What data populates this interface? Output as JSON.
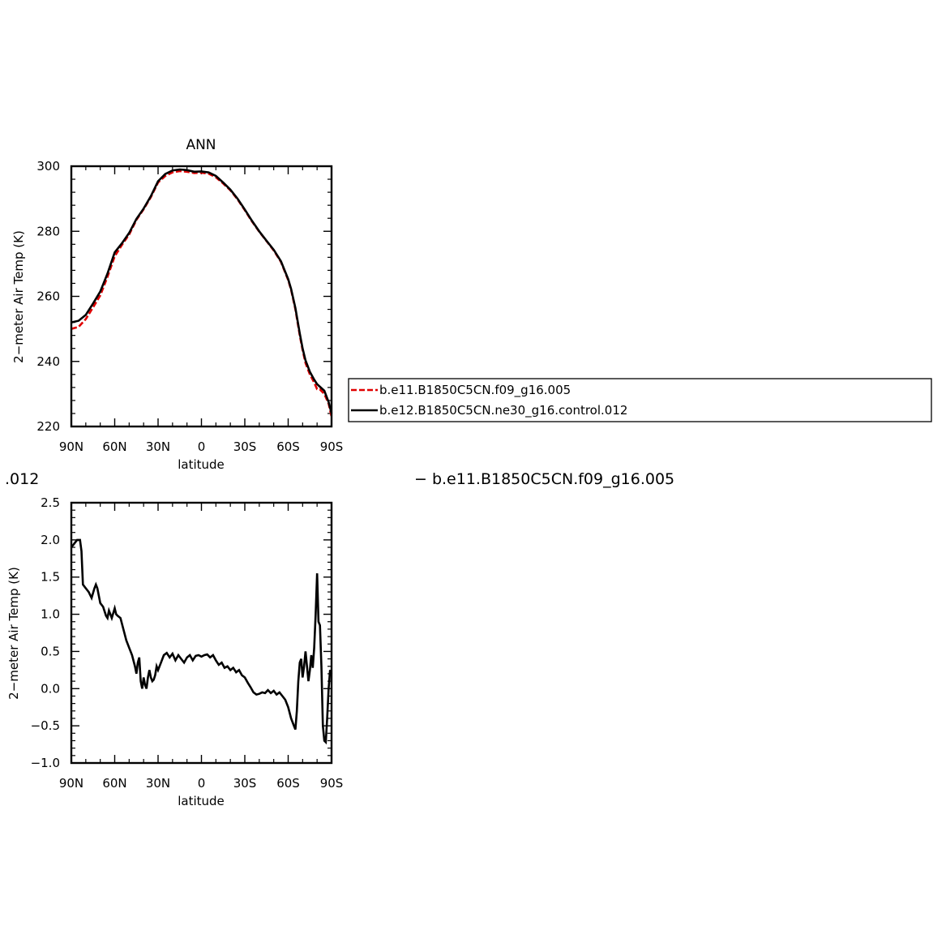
{
  "chart_data": [
    {
      "type": "line",
      "title": "ANN",
      "xlabel": "latitude",
      "ylabel": "2−meter Air Temp (K)",
      "xlim": [
        90,
        -90
      ],
      "ylim": [
        220,
        300
      ],
      "x_ticks": [
        90,
        60,
        30,
        0,
        -30,
        -60,
        -90
      ],
      "x_tick_labels": [
        "90N",
        "60N",
        "30N",
        "0",
        "30S",
        "60S",
        "90S"
      ],
      "y_ticks": [
        220,
        240,
        260,
        280,
        300
      ],
      "y_tick_labels": [
        "220",
        "240",
        "260",
        "280",
        "300"
      ],
      "legend_position": "right, outside plot",
      "series": [
        {
          "name": "b.e11.B1850C5CN.f09_g16.005",
          "color": "#e00000",
          "dash": "dashed",
          "x": [
            90,
            85,
            80,
            75,
            70,
            65,
            60,
            55,
            50,
            45,
            40,
            35,
            30,
            25,
            20,
            15,
            10,
            5,
            0,
            -5,
            -10,
            -15,
            -20,
            -25,
            -30,
            -35,
            -40,
            -45,
            -50,
            -55,
            -60,
            -62,
            -65,
            -68,
            -70,
            -72,
            -75,
            -78,
            -80,
            -82,
            -85,
            -88,
            -90
          ],
          "values": [
            250.0,
            250.6,
            253.0,
            256.6,
            260.3,
            266.0,
            272.3,
            275.8,
            279.0,
            283.5,
            286.8,
            290.5,
            295.0,
            297.0,
            298.1,
            298.5,
            298.3,
            297.9,
            298.0,
            297.7,
            296.6,
            294.7,
            292.6,
            289.8,
            286.5,
            283.0,
            279.9,
            277.0,
            274.1,
            270.6,
            265.0,
            262.0,
            256.0,
            248.0,
            243.5,
            239.5,
            236.0,
            233.5,
            231.5,
            231.4,
            230.0,
            227.0,
            223.0
          ]
        },
        {
          "name": "b.e12.B1850C5CN.ne30_g16.control.012",
          "color": "#000000",
          "dash": "solid",
          "x": [
            90,
            85,
            80,
            75,
            70,
            65,
            60,
            55,
            50,
            45,
            40,
            35,
            30,
            25,
            20,
            15,
            10,
            5,
            0,
            -5,
            -10,
            -15,
            -20,
            -25,
            -30,
            -35,
            -40,
            -45,
            -50,
            -55,
            -60,
            -62,
            -65,
            -68,
            -70,
            -72,
            -75,
            -78,
            -80,
            -82,
            -85,
            -88,
            -90
          ],
          "values": [
            252.0,
            252.5,
            254.3,
            257.8,
            261.5,
            267.0,
            273.5,
            276.3,
            279.5,
            283.8,
            287.0,
            290.8,
            295.4,
            297.6,
            298.7,
            299.0,
            298.8,
            298.3,
            298.4,
            298.1,
            297.0,
            295.0,
            292.8,
            290.0,
            286.7,
            283.2,
            280.0,
            277.1,
            274.3,
            270.8,
            265.3,
            262.3,
            256.4,
            248.6,
            244.0,
            240.3,
            236.8,
            234.4,
            233.0,
            232.2,
            231.0,
            227.5,
            224.0
          ]
        }
      ]
    },
    {
      "type": "line",
      "title": "",
      "xlabel": "latitude",
      "ylabel": "2−meter Air Temp (K)",
      "xlim": [
        90,
        -90
      ],
      "ylim": [
        -1.0,
        2.5
      ],
      "x_ticks": [
        90,
        60,
        30,
        0,
        -30,
        -60,
        -90
      ],
      "x_tick_labels": [
        "90N",
        "60N",
        "30N",
        "0",
        "30S",
        "60S",
        "90S"
      ],
      "y_ticks": [
        -1.0,
        -0.5,
        0.0,
        0.5,
        1.0,
        1.5,
        2.0,
        2.5
      ],
      "y_tick_labels": [
        "−1.0",
        "−0.5",
        "0.0",
        "0.5",
        "1.0",
        "1.5",
        "2.0",
        "2.5"
      ],
      "header_left": ".012",
      "header_right": "− b.e11.B1850C5CN.f09_g16.005",
      "series": [
        {
          "color": "#000000",
          "x": [
            90,
            88,
            86,
            84,
            83,
            82,
            80,
            78,
            76,
            74,
            73,
            72,
            70,
            68,
            66,
            65,
            64,
            63,
            62,
            60,
            59,
            58,
            56,
            54,
            52,
            50,
            48,
            46,
            45,
            44,
            43,
            42,
            41,
            40,
            39,
            38,
            37,
            36,
            35,
            34,
            33,
            32,
            31,
            30,
            28,
            26,
            24,
            22,
            20,
            18,
            16,
            14,
            12,
            10,
            8,
            6,
            4,
            2,
            0,
            -2,
            -4,
            -6,
            -8,
            -10,
            -12,
            -14,
            -16,
            -18,
            -20,
            -22,
            -24,
            -26,
            -28,
            -30,
            -32,
            -34,
            -36,
            -38,
            -40,
            -42,
            -44,
            -46,
            -48,
            -50,
            -52,
            -54,
            -56,
            -58,
            -60,
            -62,
            -64,
            -65,
            -66,
            -67,
            -68,
            -69,
            -70,
            -71,
            -72,
            -73,
            -74,
            -75,
            -76,
            -77,
            -78,
            -79,
            -80,
            -81,
            -82,
            -83,
            -84,
            -85,
            -86,
            -87,
            -88,
            -89,
            -90
          ],
          "values": [
            1.9,
            1.95,
            2.0,
            2.0,
            1.85,
            1.4,
            1.35,
            1.3,
            1.22,
            1.35,
            1.4,
            1.35,
            1.15,
            1.1,
            0.98,
            0.95,
            1.05,
            1.0,
            0.95,
            1.08,
            1.0,
            0.98,
            0.95,
            0.8,
            0.65,
            0.55,
            0.45,
            0.3,
            0.2,
            0.35,
            0.42,
            0.1,
            0.0,
            0.15,
            0.05,
            0.0,
            0.15,
            0.25,
            0.15,
            0.1,
            0.12,
            0.18,
            0.3,
            0.25,
            0.35,
            0.45,
            0.48,
            0.42,
            0.47,
            0.38,
            0.45,
            0.4,
            0.35,
            0.42,
            0.45,
            0.38,
            0.44,
            0.45,
            0.43,
            0.45,
            0.46,
            0.42,
            0.45,
            0.38,
            0.32,
            0.35,
            0.28,
            0.3,
            0.25,
            0.28,
            0.22,
            0.25,
            0.18,
            0.15,
            0.08,
            0.02,
            -0.05,
            -0.08,
            -0.07,
            -0.05,
            -0.06,
            -0.02,
            -0.06,
            -0.03,
            -0.08,
            -0.05,
            -0.1,
            -0.15,
            -0.25,
            -0.4,
            -0.5,
            -0.55,
            -0.3,
            0.1,
            0.35,
            0.4,
            0.15,
            0.3,
            0.5,
            0.3,
            0.1,
            0.25,
            0.45,
            0.28,
            0.55,
            1.0,
            1.55,
            0.9,
            0.85,
            0.3,
            -0.5,
            -0.7,
            -0.72,
            -0.4,
            0.0,
            0.25,
            0.2
          ]
        }
      ]
    }
  ]
}
